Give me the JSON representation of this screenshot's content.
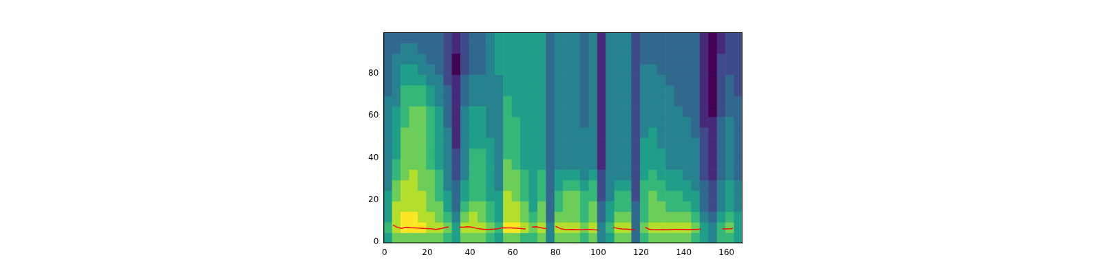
{
  "chart_data": {
    "type": "heatmap",
    "xlim": [
      -0.5,
      167.5
    ],
    "ylim": [
      -0.5,
      99.5
    ],
    "xticks": [
      0,
      20,
      40,
      60,
      80,
      100,
      120,
      140,
      160
    ],
    "yticks": [
      0,
      20,
      40,
      60,
      80
    ],
    "grid": false,
    "cells": {
      "x_edges": [
        -0.5,
        3.5,
        7.5,
        11.5,
        15.5,
        19.5,
        23.5,
        27.5,
        31.5,
        35.5,
        39.5,
        43.5,
        47.5,
        51.5,
        55.5,
        59.5,
        63.5,
        67.5,
        71.5,
        75.5,
        79.5,
        83.5,
        87.5,
        91.5,
        95.5,
        99.5,
        103.5,
        107.5,
        111.5,
        115.5,
        119.5,
        123.5,
        127.5,
        131.5,
        135.5,
        139.5,
        143.5,
        147.5,
        151.5,
        155.5,
        159.5,
        163.5,
        167.5
      ],
      "y_edges": [
        -0.5,
        4.5,
        9.5,
        14.5,
        19.5,
        24.5,
        29.5,
        34.5,
        39.5,
        44.5,
        49.5,
        54.5,
        59.5,
        64.5,
        69.5,
        74.5,
        79.5,
        84.5,
        89.5,
        94.5,
        99.5
      ],
      "z": [
        [
          5,
          6,
          5,
          5,
          5,
          4,
          4,
          4,
          4,
          4,
          4,
          4,
          4,
          4,
          3,
          3,
          3,
          3,
          3,
          3
        ],
        [
          7,
          8,
          8,
          8,
          7,
          7,
          6,
          6,
          5,
          5,
          5,
          5,
          5,
          4,
          4,
          4,
          4,
          4,
          3,
          3
        ],
        [
          7,
          9,
          9,
          8,
          8,
          8,
          7,
          7,
          7,
          7,
          7,
          6,
          6,
          6,
          6,
          5,
          5,
          4,
          4,
          3
        ],
        [
          7,
          9,
          9,
          8,
          8,
          8,
          8,
          7,
          7,
          7,
          7,
          7,
          7,
          6,
          6,
          5,
          5,
          4,
          4,
          3
        ],
        [
          7,
          9,
          8,
          8,
          8,
          7,
          7,
          7,
          7,
          7,
          7,
          7,
          7,
          6,
          6,
          5,
          4,
          4,
          3,
          3
        ],
        [
          7,
          8,
          8,
          7,
          7,
          7,
          7,
          6,
          6,
          6,
          6,
          6,
          6,
          5,
          5,
          4,
          4,
          3,
          3,
          3
        ],
        [
          7,
          8,
          7,
          7,
          6,
          6,
          6,
          5,
          5,
          5,
          5,
          5,
          5,
          4,
          4,
          4,
          3,
          3,
          3,
          3
        ],
        [
          6,
          7,
          6,
          5,
          5,
          4,
          4,
          4,
          4,
          4,
          4,
          3,
          3,
          3,
          3,
          2,
          2,
          2,
          2,
          2
        ],
        [
          5,
          5,
          4,
          3,
          3,
          3,
          2,
          2,
          2,
          1,
          1,
          1,
          1,
          1,
          1,
          1,
          0,
          0,
          1,
          1
        ],
        [
          7,
          8,
          7,
          6,
          5,
          5,
          4,
          4,
          4,
          4,
          4,
          4,
          4,
          3,
          3,
          3,
          2,
          2,
          2,
          2
        ],
        [
          7,
          8,
          8,
          7,
          6,
          6,
          6,
          6,
          6,
          5,
          5,
          5,
          5,
          4,
          4,
          4,
          3,
          3,
          3,
          3
        ],
        [
          7,
          8,
          7,
          7,
          6,
          6,
          6,
          6,
          6,
          5,
          5,
          5,
          5,
          4,
          4,
          4,
          3,
          3,
          3,
          3
        ],
        [
          6,
          7,
          6,
          6,
          5,
          5,
          5,
          5,
          5,
          5,
          4,
          4,
          4,
          4,
          4,
          4,
          4,
          4,
          4,
          4
        ],
        [
          5,
          6,
          5,
          5,
          5,
          4,
          4,
          4,
          4,
          4,
          4,
          4,
          4,
          4,
          4,
          4,
          5,
          5,
          5,
          5
        ],
        [
          7,
          9,
          8,
          8,
          8,
          7,
          7,
          7,
          6,
          6,
          6,
          6,
          6,
          6,
          5,
          5,
          5,
          5,
          5,
          5
        ],
        [
          7,
          9,
          8,
          8,
          7,
          7,
          7,
          6,
          6,
          6,
          6,
          6,
          5,
          5,
          5,
          5,
          5,
          5,
          5,
          5
        ],
        [
          6,
          8,
          7,
          7,
          6,
          6,
          6,
          5,
          5,
          5,
          5,
          5,
          5,
          5,
          5,
          5,
          5,
          5,
          5,
          5
        ],
        [
          6,
          7,
          6,
          5,
          5,
          5,
          5,
          5,
          5,
          5,
          5,
          5,
          5,
          5,
          5,
          5,
          5,
          5,
          5,
          5
        ],
        [
          7,
          8,
          7,
          7,
          6,
          6,
          6,
          5,
          5,
          5,
          5,
          5,
          5,
          5,
          5,
          5,
          5,
          5,
          5,
          5
        ],
        [
          4,
          4,
          3,
          3,
          3,
          3,
          3,
          3,
          3,
          3,
          3,
          3,
          3,
          3,
          3,
          3,
          3,
          3,
          3,
          3
        ],
        [
          7,
          8,
          7,
          6,
          6,
          5,
          5,
          4,
          4,
          4,
          4,
          4,
          4,
          4,
          4,
          4,
          4,
          4,
          4,
          4
        ],
        [
          7,
          8,
          7,
          7,
          7,
          6,
          5,
          4,
          4,
          4,
          4,
          4,
          4,
          4,
          4,
          4,
          4,
          4,
          4,
          4
        ],
        [
          7,
          8,
          7,
          7,
          7,
          6,
          5,
          4,
          4,
          4,
          4,
          4,
          4,
          4,
          4,
          4,
          4,
          4,
          4,
          4
        ],
        [
          6,
          7,
          6,
          6,
          6,
          5,
          4,
          4,
          4,
          4,
          4,
          3,
          3,
          3,
          3,
          3,
          3,
          3,
          3,
          3
        ],
        [
          7,
          8,
          7,
          7,
          6,
          6,
          5,
          4,
          4,
          4,
          4,
          4,
          4,
          4,
          4,
          4,
          4,
          4,
          4,
          4
        ],
        [
          4,
          4,
          3,
          3,
          2,
          2,
          2,
          1,
          1,
          1,
          1,
          1,
          1,
          1,
          1,
          1,
          1,
          1,
          1,
          1
        ],
        [
          5,
          6,
          5,
          5,
          4,
          4,
          4,
          4,
          4,
          4,
          4,
          4,
          4,
          4,
          4,
          4,
          4,
          4,
          4,
          4
        ],
        [
          7,
          8,
          7,
          6,
          6,
          5,
          4,
          4,
          4,
          4,
          4,
          4,
          4,
          4,
          4,
          4,
          4,
          4,
          4,
          4
        ],
        [
          7,
          8,
          7,
          6,
          6,
          5,
          4,
          4,
          4,
          4,
          4,
          4,
          4,
          4,
          4,
          4,
          4,
          4,
          4,
          4
        ],
        [
          3,
          3,
          3,
          3,
          2,
          2,
          2,
          2,
          2,
          2,
          2,
          2,
          2,
          2,
          2,
          2,
          2,
          2,
          2,
          2
        ],
        [
          6,
          7,
          6,
          6,
          6,
          6,
          5,
          5,
          5,
          5,
          4,
          4,
          4,
          4,
          4,
          4,
          4,
          3,
          3,
          3
        ],
        [
          7,
          8,
          7,
          7,
          7,
          6,
          6,
          5,
          5,
          5,
          5,
          4,
          4,
          4,
          4,
          4,
          4,
          3,
          3,
          3
        ],
        [
          7,
          8,
          7,
          7,
          6,
          6,
          5,
          5,
          5,
          4,
          4,
          4,
          4,
          4,
          4,
          4,
          3,
          3,
          3,
          3
        ],
        [
          7,
          8,
          7,
          6,
          6,
          5,
          5,
          4,
          4,
          4,
          4,
          4,
          4,
          4,
          4,
          3,
          3,
          3,
          3,
          3
        ],
        [
          7,
          8,
          7,
          6,
          6,
          5,
          5,
          4,
          4,
          4,
          4,
          4,
          4,
          3,
          3,
          3,
          3,
          3,
          3,
          3
        ],
        [
          7,
          8,
          7,
          6,
          5,
          5,
          4,
          4,
          4,
          4,
          4,
          4,
          3,
          3,
          3,
          3,
          3,
          3,
          3,
          3
        ],
        [
          6,
          7,
          6,
          5,
          5,
          4,
          4,
          4,
          4,
          4,
          3,
          3,
          3,
          3,
          3,
          3,
          3,
          3,
          3,
          3
        ],
        [
          5,
          5,
          4,
          3,
          3,
          3,
          2,
          2,
          2,
          2,
          2,
          1,
          1,
          1,
          1,
          1,
          1,
          1,
          1,
          1
        ],
        [
          4,
          4,
          3,
          2,
          2,
          2,
          1,
          1,
          1,
          1,
          1,
          1,
          0,
          0,
          0,
          0,
          0,
          0,
          0,
          0
        ],
        [
          6,
          6,
          5,
          4,
          4,
          4,
          3,
          3,
          3,
          3,
          3,
          3,
          2,
          2,
          2,
          2,
          2,
          2,
          1,
          1
        ],
        [
          6,
          7,
          6,
          5,
          5,
          5,
          4,
          4,
          4,
          4,
          4,
          4,
          3,
          3,
          3,
          3,
          2,
          2,
          2,
          2
        ],
        [
          5,
          5,
          5,
          4,
          4,
          4,
          3,
          3,
          3,
          3,
          3,
          3,
          3,
          3,
          2,
          2,
          2,
          2,
          2,
          2
        ]
      ]
    },
    "series": [
      {
        "type": "line",
        "color": "red",
        "x": [
          4,
          6,
          8,
          10,
          12,
          14,
          16,
          18,
          20,
          22,
          24,
          26,
          28,
          30,
          32,
          35,
          37,
          39,
          41,
          43,
          45,
          47,
          49,
          51,
          53,
          55,
          57,
          59,
          61,
          63,
          65,
          66,
          67,
          69,
          71,
          73,
          75,
          76,
          78,
          80,
          82,
          84,
          86,
          88,
          90,
          92,
          94,
          96,
          98,
          100,
          103,
          107,
          109,
          111,
          113,
          115,
          117,
          120,
          122,
          124,
          126,
          128,
          130,
          132,
          134,
          136,
          138,
          140,
          142,
          144,
          146,
          148,
          153,
          158,
          160,
          162,
          163
        ],
        "values": [
          8,
          7,
          6.5,
          7,
          6.8,
          6.7,
          6.6,
          6.5,
          6.4,
          6.3,
          6,
          6.3,
          6.8,
          7.2,
          null,
          7,
          7,
          7.3,
          7,
          6.5,
          6.2,
          6,
          6,
          6.1,
          6.3,
          6.8,
          6.7,
          6.7,
          6.6,
          6.5,
          6.3,
          6.2,
          null,
          7,
          7.3,
          6.8,
          6.5,
          6.4,
          null,
          7.5,
          6.5,
          6,
          5.9,
          6,
          5.9,
          5.8,
          6,
          6,
          5.8,
          5.7,
          null,
          7,
          6.5,
          6.2,
          6.1,
          6,
          6,
          null,
          7,
          6,
          5.8,
          5.8,
          5.9,
          5.8,
          5.9,
          6,
          6,
          6,
          5.9,
          6,
          6,
          6.1,
          null,
          6.3,
          6.2,
          6.3,
          6.5
        ]
      }
    ]
  }
}
